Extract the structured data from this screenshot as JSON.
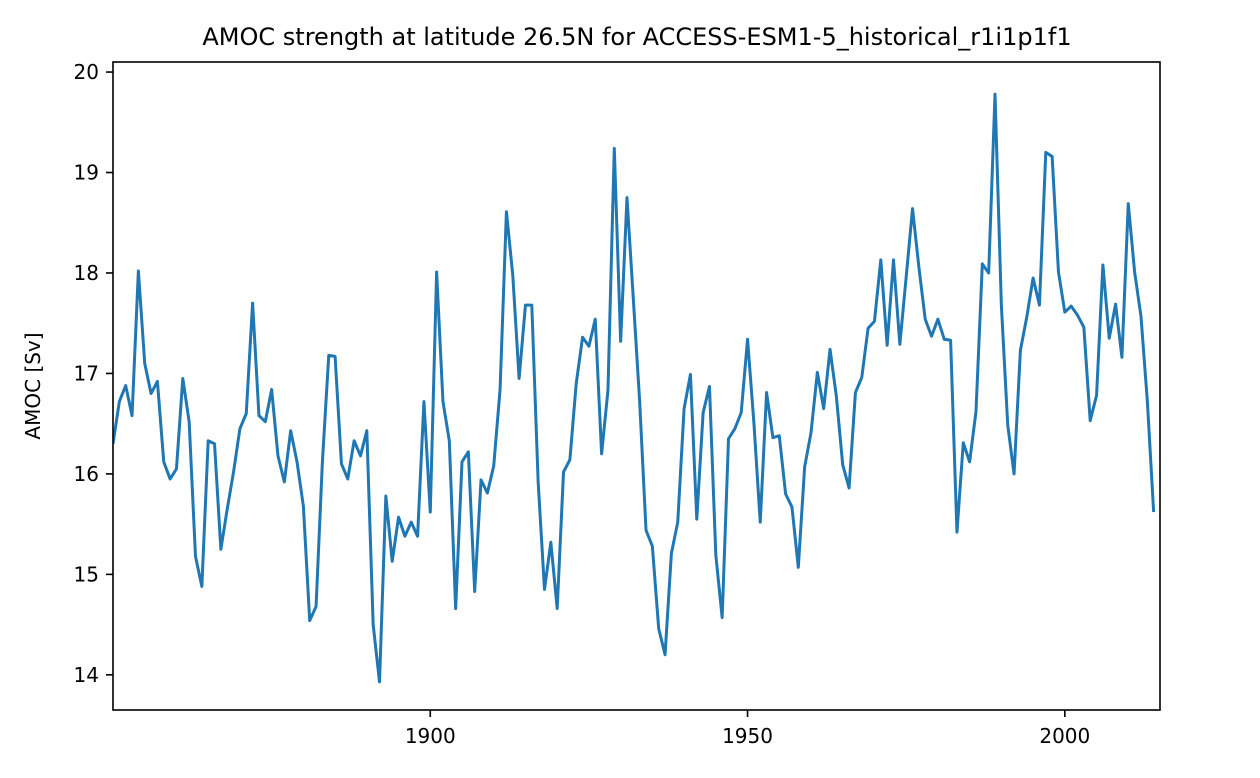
{
  "chart_data": {
    "type": "line",
    "title": "AMOC strength at latitude 26.5N for ACCESS-ESM1-5_historical_r1i1p1f1",
    "xlabel": "",
    "ylabel": "AMOC [Sv]",
    "xlim": [
      1850,
      2015
    ],
    "ylim": [
      13.65,
      20.1
    ],
    "x_ticks": [
      1900,
      1950,
      2000
    ],
    "y_ticks": [
      14,
      15,
      16,
      17,
      18,
      19,
      20
    ],
    "grid": false,
    "series": [
      {
        "color": "#1f77b4",
        "x": [
          1850,
          1851,
          1852,
          1853,
          1854,
          1855,
          1856,
          1857,
          1858,
          1859,
          1860,
          1861,
          1862,
          1863,
          1864,
          1865,
          1866,
          1867,
          1868,
          1869,
          1870,
          1871,
          1872,
          1873,
          1874,
          1875,
          1876,
          1877,
          1878,
          1879,
          1880,
          1881,
          1882,
          1883,
          1884,
          1885,
          1886,
          1887,
          1888,
          1889,
          1890,
          1891,
          1892,
          1893,
          1894,
          1895,
          1896,
          1897,
          1898,
          1899,
          1900,
          1901,
          1902,
          1903,
          1904,
          1905,
          1906,
          1907,
          1908,
          1909,
          1910,
          1911,
          1912,
          1913,
          1914,
          1915,
          1916,
          1917,
          1918,
          1919,
          1920,
          1921,
          1922,
          1923,
          1924,
          1925,
          1926,
          1927,
          1928,
          1929,
          1930,
          1931,
          1932,
          1933,
          1934,
          1935,
          1936,
          1937,
          1938,
          1939,
          1940,
          1941,
          1942,
          1943,
          1944,
          1945,
          1946,
          1947,
          1948,
          1949,
          1950,
          1951,
          1952,
          1953,
          1954,
          1955,
          1956,
          1957,
          1958,
          1959,
          1960,
          1961,
          1962,
          1963,
          1964,
          1965,
          1966,
          1967,
          1968,
          1969,
          1970,
          1971,
          1972,
          1973,
          1974,
          1975,
          1976,
          1977,
          1978,
          1979,
          1980,
          1981,
          1982,
          1983,
          1984,
          1985,
          1986,
          1987,
          1988,
          1989,
          1990,
          1991,
          1992,
          1993,
          1994,
          1995,
          1996,
          1997,
          1998,
          1999,
          2000,
          2001,
          2002,
          2003,
          2004,
          2005,
          2006,
          2007,
          2008,
          2009,
          2010,
          2011,
          2012,
          2013,
          2014
        ],
        "y": [
          16.3,
          16.72,
          16.88,
          16.58,
          18.02,
          17.1,
          16.8,
          16.92,
          16.12,
          15.95,
          16.05,
          16.95,
          16.52,
          15.18,
          14.88,
          16.33,
          16.3,
          15.25,
          15.65,
          16.02,
          16.45,
          16.6,
          17.7,
          16.58,
          16.52,
          16.84,
          16.18,
          15.92,
          16.43,
          16.12,
          15.68,
          14.54,
          14.68,
          16.12,
          17.18,
          17.17,
          16.1,
          15.95,
          16.33,
          16.18,
          16.43,
          14.5,
          13.93,
          15.78,
          15.13,
          15.57,
          15.38,
          15.52,
          15.38,
          16.72,
          15.62,
          18.01,
          16.72,
          16.33,
          14.66,
          16.12,
          16.22,
          14.83,
          15.94,
          15.81,
          16.08,
          16.84,
          18.61,
          17.98,
          16.95,
          17.68,
          17.68,
          15.92,
          14.85,
          15.32,
          14.66,
          16.02,
          16.14,
          16.9,
          17.36,
          17.27,
          17.54,
          16.2,
          16.83,
          19.24,
          17.32,
          18.75,
          17.74,
          16.72,
          15.44,
          15.28,
          14.46,
          14.2,
          15.21,
          15.52,
          16.65,
          16.99,
          15.55,
          16.61,
          16.87,
          15.19,
          14.57,
          16.35,
          16.45,
          16.61,
          17.34,
          16.51,
          15.52,
          16.81,
          16.36,
          16.38,
          15.8,
          15.67,
          15.07,
          16.07,
          16.41,
          17.01,
          16.65,
          17.24,
          16.77,
          16.09,
          15.86,
          16.81,
          16.96,
          17.45,
          17.52,
          18.13,
          17.28,
          18.13,
          17.29,
          17.96,
          18.64,
          18.06,
          17.54,
          17.37,
          17.54,
          17.34,
          17.33,
          15.42,
          16.31,
          16.12,
          16.62,
          18.09,
          18.0,
          19.78,
          17.68,
          16.49,
          16.0,
          17.23,
          17.56,
          17.95,
          17.68,
          19.2,
          19.16,
          18.01,
          17.61,
          17.67,
          17.58,
          17.46,
          16.53,
          16.78,
          18.08,
          17.35,
          17.69,
          17.16,
          18.69,
          18.01,
          17.57,
          16.73,
          15.62
        ]
      }
    ]
  }
}
